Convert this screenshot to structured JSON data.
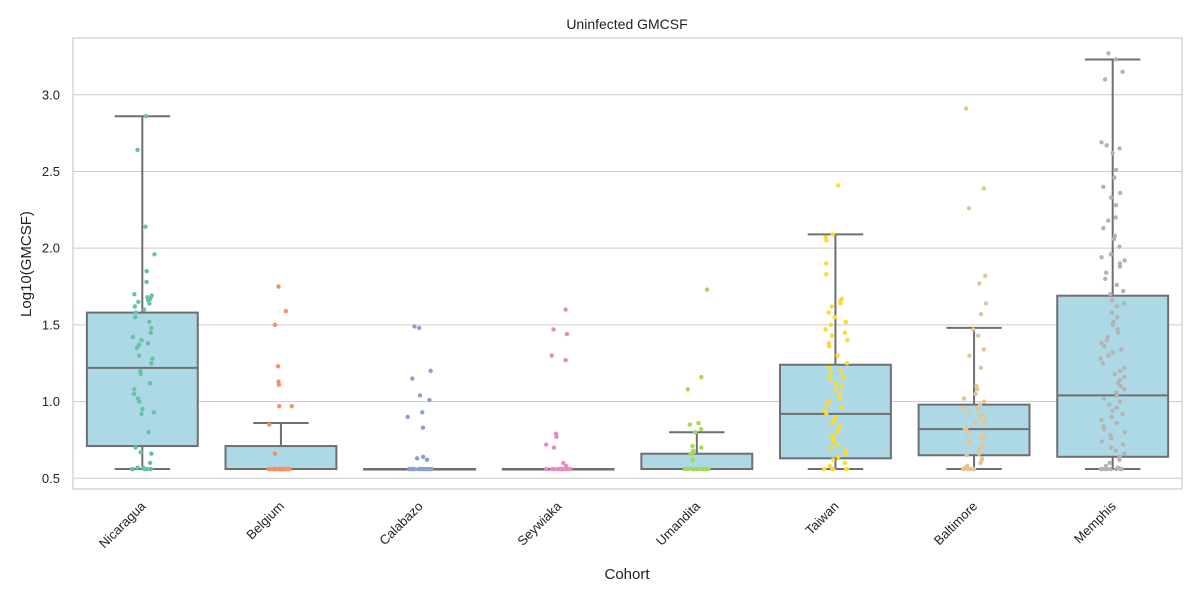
{
  "chart_data": {
    "type": "box",
    "title": "Uninfected GMCSF",
    "xlabel": "Cohort",
    "ylabel": "Log10(GMCSF)",
    "ylim": [
      0.43,
      3.37
    ],
    "yticks": [
      "0.5",
      "1.0",
      "1.5",
      "2.0",
      "2.5",
      "3.0"
    ],
    "grid": true,
    "box_color": "#add8e6",
    "categories": [
      "Nicaragua",
      "Belgium",
      "Calabazo",
      "Seywiaka",
      "Umandita",
      "Taiwan",
      "Baltimore",
      "Memphis"
    ],
    "point_colors": [
      "#66c2a5",
      "#fc8d62",
      "#8da0cb",
      "#e78ac3",
      "#a6d854",
      "#ffd92f",
      "#e5c494",
      "#b3b3b3"
    ],
    "boxes": [
      {
        "q1": 0.71,
        "median": 1.22,
        "q3": 1.58,
        "whisker_low": 0.56,
        "whisker_high": 2.86
      },
      {
        "q1": 0.56,
        "median": 0.56,
        "q3": 0.71,
        "whisker_low": 0.56,
        "whisker_high": 0.86
      },
      {
        "q1": 0.56,
        "median": 0.56,
        "q3": 0.56,
        "whisker_low": 0.56,
        "whisker_high": 0.56
      },
      {
        "q1": 0.56,
        "median": 0.56,
        "q3": 0.56,
        "whisker_low": 0.56,
        "whisker_high": 0.56
      },
      {
        "q1": 0.56,
        "median": 0.56,
        "q3": 0.66,
        "whisker_low": 0.56,
        "whisker_high": 0.8
      },
      {
        "q1": 0.63,
        "median": 0.92,
        "q3": 1.24,
        "whisker_low": 0.56,
        "whisker_high": 2.09
      },
      {
        "q1": 0.65,
        "median": 0.82,
        "q3": 0.98,
        "whisker_low": 0.56,
        "whisker_high": 1.48
      },
      {
        "q1": 0.64,
        "median": 1.04,
        "q3": 1.69,
        "whisker_low": 0.56,
        "whisker_high": 3.23
      }
    ],
    "points": [
      [
        2.86,
        2.64,
        2.14,
        1.96,
        1.85,
        1.78,
        1.7,
        1.69,
        1.68,
        1.67,
        1.66,
        1.65,
        1.64,
        1.62,
        1.6,
        1.58,
        1.55,
        1.52,
        1.48,
        1.45,
        1.42,
        1.4,
        1.38,
        1.37,
        1.35,
        1.3,
        1.28,
        1.25,
        1.2,
        1.18,
        1.12,
        1.08,
        1.05,
        1.02,
        1.0,
        0.95,
        0.93,
        0.92,
        0.8,
        0.7,
        0.67,
        0.66,
        0.6,
        0.57,
        0.57,
        0.56,
        0.56,
        0.56,
        0.56,
        0.56,
        0.56
      ],
      [
        1.75,
        1.59,
        1.5,
        1.23,
        1.13,
        1.11,
        0.97,
        0.97,
        0.85,
        0.66,
        0.56,
        0.56,
        0.56,
        0.56,
        0.56,
        0.56,
        0.56,
        0.56,
        0.56,
        0.56,
        0.56,
        0.56,
        0.56,
        0.56,
        0.56,
        0.56,
        0.56,
        0.56
      ],
      [
        1.49,
        1.48,
        1.2,
        1.15,
        1.04,
        1.01,
        0.93,
        0.9,
        0.83,
        0.64,
        0.63,
        0.62,
        0.56,
        0.56,
        0.56,
        0.56,
        0.56,
        0.56,
        0.56,
        0.56,
        0.56,
        0.56,
        0.56,
        0.56,
        0.56,
        0.56,
        0.56,
        0.56
      ],
      [
        1.6,
        1.47,
        1.44,
        1.3,
        1.27,
        0.79,
        0.77,
        0.72,
        0.7,
        0.6,
        0.58,
        0.56,
        0.56,
        0.56,
        0.56,
        0.56,
        0.56,
        0.56,
        0.56,
        0.56,
        0.56,
        0.56,
        0.56,
        0.56
      ],
      [
        1.73,
        1.16,
        1.08,
        0.86,
        0.85,
        0.82,
        0.8,
        0.71,
        0.7,
        0.68,
        0.67,
        0.66,
        0.62,
        0.56,
        0.56,
        0.56,
        0.56,
        0.56,
        0.56,
        0.56,
        0.56,
        0.56,
        0.56,
        0.56,
        0.56,
        0.56,
        0.56
      ],
      [
        2.41,
        2.09,
        2.07,
        2.05,
        1.9,
        1.83,
        1.67,
        1.66,
        1.64,
        1.62,
        1.58,
        1.55,
        1.52,
        1.5,
        1.47,
        1.45,
        1.43,
        1.4,
        1.38,
        1.36,
        1.3,
        1.25,
        1.22,
        1.2,
        1.18,
        1.16,
        1.15,
        1.12,
        1.1,
        1.08,
        1.05,
        1.02,
        1.0,
        0.98,
        0.96,
        0.94,
        0.92,
        0.9,
        0.88,
        0.86,
        0.84,
        0.82,
        0.8,
        0.78,
        0.76,
        0.74,
        0.72,
        0.7,
        0.68,
        0.66,
        0.64,
        0.62,
        0.6,
        0.58,
        0.56,
        0.56,
        0.56,
        0.56,
        0.56,
        0.56,
        0.56,
        0.56
      ],
      [
        2.91,
        2.39,
        2.26,
        1.82,
        1.77,
        1.64,
        1.57,
        1.47,
        1.43,
        1.34,
        1.3,
        1.22,
        1.1,
        1.08,
        1.05,
        1.02,
        1.0,
        0.98,
        0.96,
        0.95,
        0.93,
        0.91,
        0.9,
        0.88,
        0.86,
        0.85,
        0.83,
        0.82,
        0.8,
        0.78,
        0.76,
        0.75,
        0.73,
        0.72,
        0.7,
        0.68,
        0.66,
        0.65,
        0.63,
        0.62,
        0.6,
        0.58,
        0.57,
        0.56,
        0.56,
        0.56,
        0.56,
        0.56,
        0.56
      ],
      [
        3.27,
        3.23,
        3.15,
        3.1,
        2.69,
        2.67,
        2.65,
        2.62,
        2.51,
        2.46,
        2.4,
        2.36,
        2.33,
        2.28,
        2.2,
        2.18,
        2.13,
        2.08,
        2.06,
        2.01,
        1.96,
        1.94,
        1.92,
        1.9,
        1.88,
        1.84,
        1.8,
        1.76,
        1.72,
        1.7,
        1.66,
        1.64,
        1.62,
        1.58,
        1.55,
        1.52,
        1.5,
        1.47,
        1.45,
        1.42,
        1.4,
        1.38,
        1.36,
        1.34,
        1.32,
        1.3,
        1.28,
        1.25,
        1.22,
        1.2,
        1.18,
        1.16,
        1.14,
        1.12,
        1.1,
        1.08,
        1.06,
        1.04,
        1.02,
        1.0,
        0.98,
        0.96,
        0.94,
        0.92,
        0.9,
        0.88,
        0.86,
        0.84,
        0.82,
        0.8,
        0.78,
        0.76,
        0.74,
        0.72,
        0.7,
        0.68,
        0.66,
        0.64,
        0.62,
        0.6,
        0.58,
        0.57,
        0.56,
        0.56,
        0.56,
        0.56,
        0.56,
        0.56,
        0.56,
        0.56
      ]
    ]
  }
}
